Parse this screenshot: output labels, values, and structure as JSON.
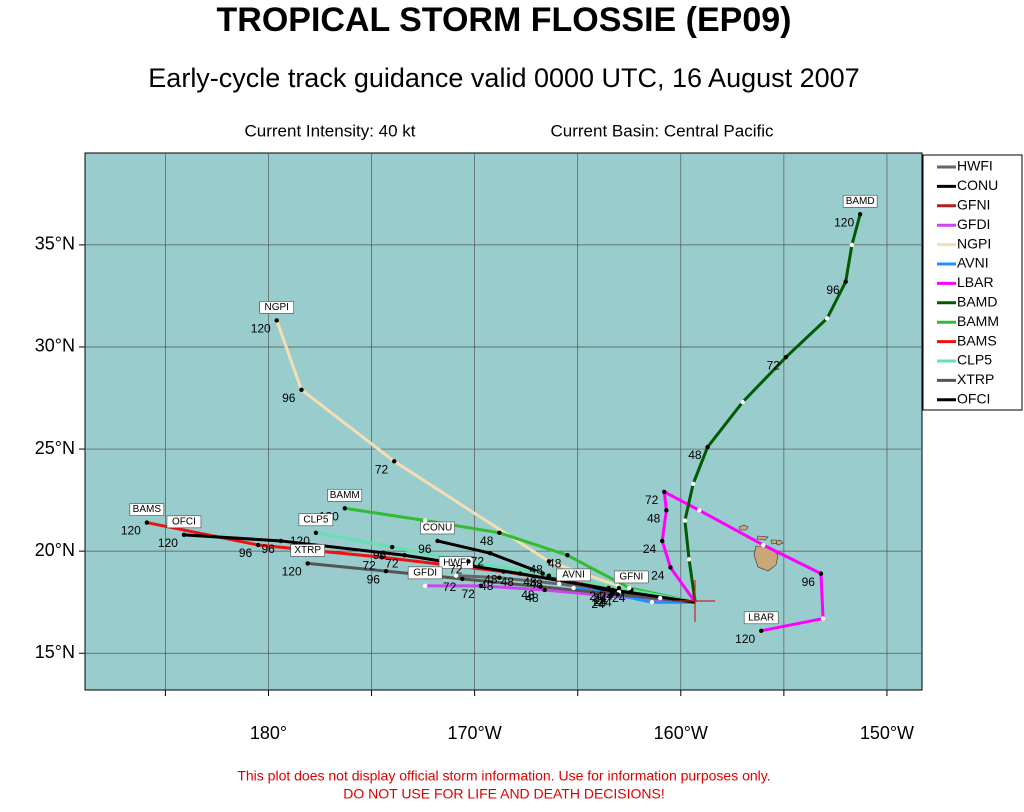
{
  "chart_data": {
    "type": "track-map",
    "title": "TROPICAL STORM FLOSSIE (EP09)",
    "subtitle": "Early-cycle track guidance valid 0000 UTC, 16 August 2007",
    "intensity": "Current Intensity: 40 kt",
    "basin": "Current Basin: Central Pacific",
    "disclaimer": [
      "This plot does not display official storm information. Use for information purposes only.",
      "DO NOT USE FOR LIFE AND DEATH DECISIONS!"
    ],
    "xlim": [
      -188.9,
      -148.3
    ],
    "ylim": [
      13.2,
      39.5
    ],
    "xticks": [
      {
        "value": -180,
        "label": "180°"
      },
      {
        "value": -170,
        "label": "170°W"
      },
      {
        "value": -160,
        "label": "160°W"
      },
      {
        "value": -150,
        "label": "150°W"
      }
    ],
    "yticks": [
      {
        "value": 15,
        "label": "15°N"
      },
      {
        "value": 20,
        "label": "20°N"
      },
      {
        "value": 25,
        "label": "25°N"
      },
      {
        "value": 30,
        "label": "30°N"
      },
      {
        "value": 35,
        "label": "35°N"
      }
    ],
    "xgrid": [
      -185,
      -180,
      -175,
      -170,
      -165,
      -160,
      -155,
      -150
    ],
    "grid": true,
    "series": [
      {
        "name": "HWFI",
        "color": "#666666",
        "lon": [
          -159.3,
          -163.0,
          -165.9,
          -168.8,
          -170.9
        ],
        "lat": [
          17.5,
          18.0,
          18.4,
          18.7,
          18.8
        ],
        "hour_labels": [
          null,
          null,
          null,
          48,
          null
        ]
      },
      {
        "name": "CONU",
        "color": "#000000",
        "lon": [
          -159.3,
          -163.3,
          -166.4,
          -169.25,
          -171.8
        ],
        "lat": [
          17.5,
          18.0,
          18.8,
          19.9,
          20.5
        ],
        "hour_labels": [
          null,
          24,
          48,
          72,
          96
        ]
      },
      {
        "name": "GFNI",
        "color": "#b22222",
        "lon": [
          -159.3,
          -161.0,
          -162.4
        ],
        "lat": [
          17.5,
          17.7,
          18.1
        ],
        "hour_labels": [
          null,
          null,
          24
        ]
      },
      {
        "name": "GFDI",
        "color": "#cc44ee",
        "lon": [
          -159.3,
          -163.4,
          -166.6,
          -169.7,
          -172.4
        ],
        "lat": [
          17.5,
          17.8,
          18.1,
          18.3,
          18.3
        ],
        "hour_labels": [
          null,
          24,
          48,
          72,
          null
        ]
      },
      {
        "name": "NGPI",
        "color": "#f5deb3",
        "lon": [
          -159.3,
          -163.05,
          -166.4,
          -173.9,
          -178.4,
          -179.6
        ],
        "lat": [
          17.5,
          18.3,
          19.5,
          24.4,
          27.9,
          31.3
        ],
        "hour_labels": [
          null,
          null,
          48,
          72,
          96,
          120
        ]
      },
      {
        "name": "AVNI",
        "color": "#1e90ff",
        "lon": [
          -159.3,
          -161.4,
          -163.3,
          -165.2
        ],
        "lat": [
          17.5,
          17.5,
          17.9,
          18.2
        ],
        "hour_labels": [
          null,
          null,
          24,
          null
        ]
      },
      {
        "name": "LBAR",
        "color": "#ff00ff",
        "lon": [
          -159.3,
          -160.5,
          -160.9,
          -160.7,
          -160.8,
          -159.1,
          -156.0,
          -153.2,
          -153.1,
          -156.1
        ],
        "lat": [
          17.5,
          19.2,
          20.5,
          22.0,
          22.9,
          22.0,
          20.3,
          18.9,
          16.7,
          16.1
        ],
        "hour_labels": [
          null,
          24,
          24,
          48,
          72,
          null,
          null,
          96,
          null,
          120
        ]
      },
      {
        "name": "BAMD",
        "color": "#005a00",
        "lon": [
          -159.3,
          -159.6,
          -159.8,
          -159.4,
          -158.7,
          -157.0,
          -154.9,
          -152.9,
          -152.0,
          -151.7,
          -151.3
        ],
        "lat": [
          17.5,
          19.6,
          21.5,
          23.3,
          25.1,
          27.3,
          29.5,
          31.4,
          33.2,
          35.0,
          36.5
        ],
        "hour_labels": [
          null,
          null,
          null,
          null,
          48,
          null,
          72,
          null,
          96,
          null,
          120
        ]
      },
      {
        "name": "BAMM",
        "color": "#33bb33",
        "lon": [
          -159.3,
          -162.5,
          -165.5,
          -168.8,
          -172.4,
          -176.3
        ],
        "lat": [
          17.5,
          18.2,
          19.8,
          20.9,
          21.5,
          22.1
        ],
        "hour_labels": [
          null,
          null,
          48,
          48,
          null,
          120
        ]
      },
      {
        "name": "BAMS",
        "color": "#ee1111",
        "lon": [
          -159.3,
          -163.5,
          -168.6,
          -174.5,
          -180.5,
          -185.9
        ],
        "lat": [
          17.5,
          18.2,
          19.0,
          19.7,
          20.3,
          21.4
        ],
        "hour_labels": [
          null,
          24,
          48,
          72,
          96,
          120
        ]
      },
      {
        "name": "CLP5",
        "color": "#66e0b0",
        "lon": [
          -159.3,
          -163.0,
          -166.7,
          -170.3,
          -174.0,
          -177.7
        ],
        "lat": [
          17.5,
          18.2,
          18.9,
          19.5,
          20.2,
          20.9
        ],
        "hour_labels": [
          null,
          24,
          48,
          72,
          96,
          120
        ]
      },
      {
        "name": "XTRP",
        "color": "#555555",
        "lon": [
          -159.3,
          -163.06,
          -166.8,
          -170.6,
          -174.3,
          -178.1
        ],
        "lat": [
          17.5,
          17.88,
          18.26,
          18.64,
          19.02,
          19.4
        ],
        "hour_labels": [
          null,
          24,
          48,
          72,
          96,
          120
        ]
      },
      {
        "name": "OFCI",
        "color": "#000000",
        "lon": [
          -159.3,
          -163.3,
          -167.8,
          -173.4,
          -179.4,
          -184.1
        ],
        "lat": [
          17.5,
          18.1,
          18.9,
          19.8,
          20.5,
          20.8
        ],
        "hour_labels": [
          null,
          24,
          48,
          72,
          96,
          120
        ]
      }
    ]
  }
}
